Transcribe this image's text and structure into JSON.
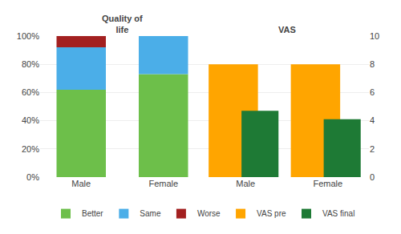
{
  "chart_data": {
    "type": "bar",
    "categories": [
      "Male",
      "Female",
      "Male",
      "Female"
    ],
    "stacked": true,
    "grid": true,
    "legend": "bottom",
    "series": [
      {
        "name": "Better",
        "color": "#6DBF4A",
        "values": [
          0.62,
          0.73,
          null,
          null
        ]
      },
      {
        "name": "Same",
        "color": "#4BAEE8",
        "values": [
          0.3,
          0.27,
          null,
          null
        ]
      },
      {
        "name": "Worse",
        "color": "#A32020",
        "values": [
          0.08,
          0.0,
          null,
          null
        ]
      },
      {
        "name": "VAS pre",
        "color": "#FFA500",
        "axis": "y2",
        "values": [
          null,
          null,
          8.0,
          8.0
        ]
      },
      {
        "name": "VAS final",
        "color": "#1E7A35",
        "axis": "y2",
        "values": [
          null,
          null,
          4.7,
          4.1
        ]
      }
    ],
    "ylim": [
      0,
      1.0
    ],
    "yticks": [
      {
        "value": 0.0,
        "label": "0%"
      },
      {
        "value": 0.2,
        "label": "20%"
      },
      {
        "value": 0.4,
        "label": "40%"
      },
      {
        "value": 0.6,
        "label": "60%"
      },
      {
        "value": 0.8,
        "label": "80%"
      },
      {
        "value": 1.0,
        "label": "100%"
      }
    ],
    "y2lim": [
      0,
      10
    ],
    "y2ticks": [
      0,
      2,
      4,
      6,
      8,
      10
    ],
    "annotations": [
      {
        "text": "Quality of\nlife",
        "x": [
          0,
          1
        ]
      },
      {
        "text": "VAS",
        "x": [
          2,
          3
        ]
      }
    ]
  }
}
